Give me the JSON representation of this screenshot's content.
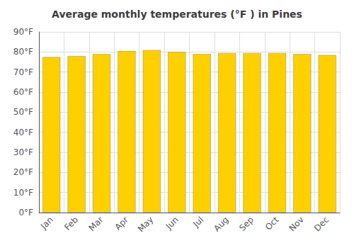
{
  "chart_data": {
    "type": "bar",
    "title": "Average monthly temperatures (°F ) in Pines",
    "categories": [
      "Jan",
      "Feb",
      "Mar",
      "Apr",
      "May",
      "Jun",
      "Jul",
      "Aug",
      "Sep",
      "Oct",
      "Nov",
      "Dec"
    ],
    "values": [
      77.5,
      78.0,
      79.0,
      80.5,
      81.0,
      80.0,
      79.0,
      79.5,
      79.5,
      79.5,
      79.0,
      78.5
    ],
    "color": "#FFD000",
    "ylim": [
      0,
      90
    ],
    "yticks": [
      {
        "value": 0,
        "label": "0°F"
      },
      {
        "value": 10,
        "label": "10°F"
      },
      {
        "value": 20,
        "label": "20°F"
      },
      {
        "value": 30,
        "label": "30°F"
      },
      {
        "value": 40,
        "label": "40°F"
      },
      {
        "value": 50,
        "label": "50°F"
      },
      {
        "value": 60,
        "label": "60°F"
      },
      {
        "value": 70,
        "label": "70°F"
      },
      {
        "value": 80,
        "label": "80°F"
      },
      {
        "value": 90,
        "label": "90°F"
      }
    ],
    "grid": true
  }
}
